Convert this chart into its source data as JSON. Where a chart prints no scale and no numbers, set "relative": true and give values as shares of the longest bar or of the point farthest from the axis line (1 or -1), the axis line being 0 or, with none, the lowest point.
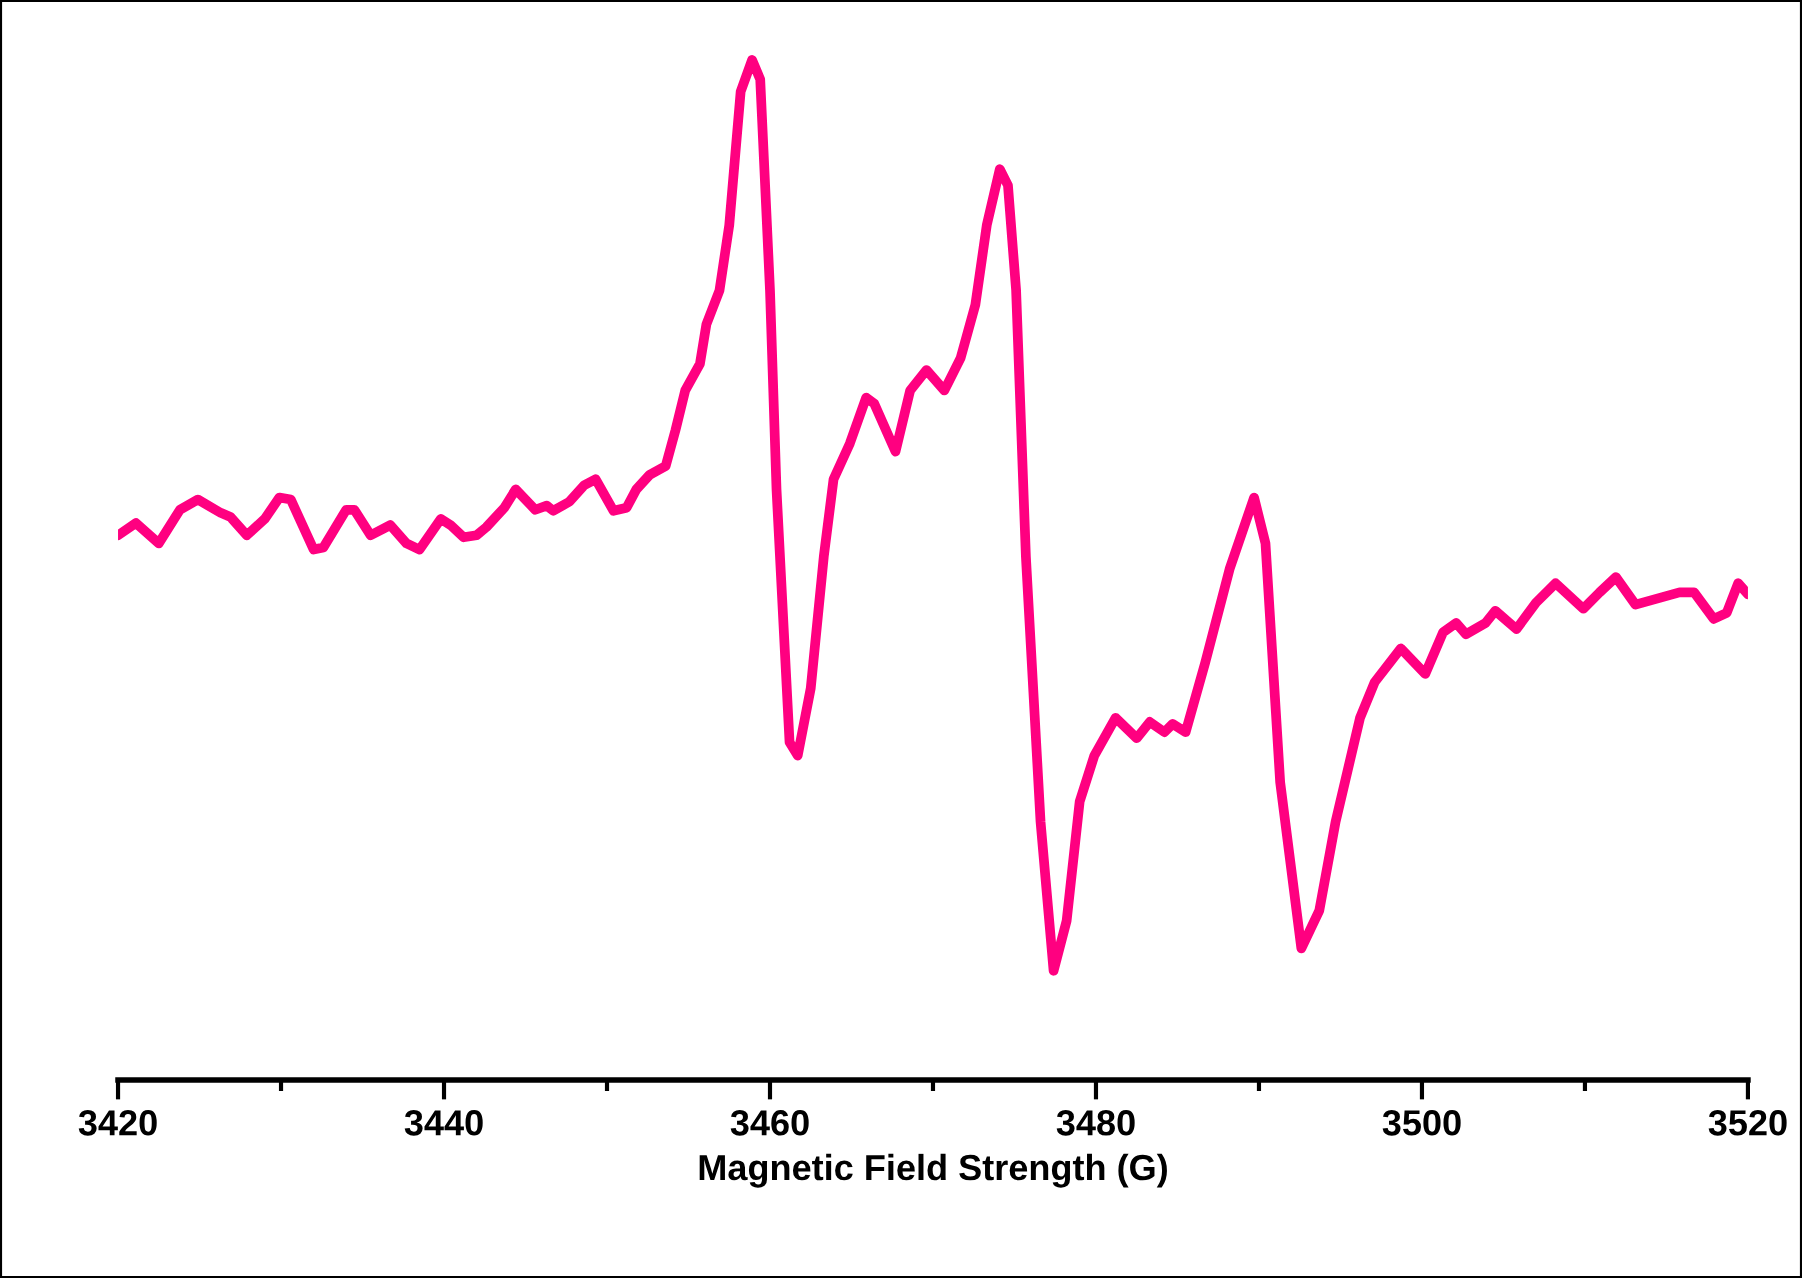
{
  "chart_data": {
    "type": "line",
    "relative": true,
    "xlabel": "Magnetic Field Strength (G)",
    "xlim": [
      3420,
      3520
    ],
    "xticks": [
      3420,
      {
        "value": 3430,
        "label": null
      },
      3440,
      {
        "value": 3450,
        "label": null
      },
      3460,
      {
        "value": 3470,
        "label": null
      },
      3480,
      {
        "value": 3490,
        "label": null
      },
      3500,
      {
        "value": 3510,
        "label": null
      },
      3520
    ],
    "grid": false,
    "legend": false,
    "marker": "none",
    "line_style": "solid",
    "series": [
      {
        "color": "#ff0080",
        "x": [
          3420.0,
          3421.1,
          3422.5,
          3423.8,
          3424.9,
          3426.3,
          3426.9,
          3427.9,
          3429.0,
          3429.9,
          3430.6,
          3432.0,
          3432.6,
          3434.0,
          3434.5,
          3435.5,
          3436.7,
          3437.7,
          3438.5,
          3439.8,
          3440.4,
          3441.2,
          3442.0,
          3442.6,
          3443.7,
          3444.4,
          3445.6,
          3446.3,
          3446.7,
          3447.7,
          3448.6,
          3449.3,
          3450.4,
          3451.2,
          3451.8,
          3452.6,
          3453.6,
          3454.2,
          3454.8,
          3455.7,
          3456.1,
          3456.9,
          3457.5,
          3458.2,
          3458.9,
          3459.4,
          3460.0,
          3460.4,
          3461.2,
          3461.7,
          3462.5,
          3463.3,
          3463.9,
          3464.9,
          3465.9,
          3466.4,
          3467.7,
          3468.6,
          3469.6,
          3470.7,
          3471.7,
          3472.6,
          3473.3,
          3474.1,
          3474.6,
          3475.1,
          3475.7,
          3476.6,
          3477.4,
          3478.2,
          3479.0,
          3479.9,
          3481.2,
          3482.5,
          3483.3,
          3484.2,
          3484.7,
          3485.5,
          3486.7,
          3488.2,
          3489.7,
          3490.4,
          3491.3,
          3492.6,
          3493.7,
          3494.7,
          3496.2,
          3497.1,
          3498.7,
          3500.2,
          3501.3,
          3502.1,
          3502.7,
          3503.9,
          3504.5,
          3505.8,
          3507.0,
          3508.2,
          3509.9,
          3510.9,
          3511.9,
          3513.1,
          3515.8,
          3516.7,
          3517.9,
          3518.7,
          3519.4,
          3520.0
        ],
        "values": [
          0.534,
          0.546,
          0.526,
          0.559,
          0.569,
          0.556,
          0.552,
          0.534,
          0.55,
          0.571,
          0.569,
          0.52,
          0.522,
          0.559,
          0.559,
          0.534,
          0.544,
          0.526,
          0.52,
          0.55,
          0.544,
          0.532,
          0.534,
          0.542,
          0.561,
          0.579,
          0.559,
          0.563,
          0.558,
          0.567,
          0.583,
          0.589,
          0.558,
          0.561,
          0.579,
          0.593,
          0.602,
          0.637,
          0.676,
          0.702,
          0.741,
          0.774,
          0.838,
          0.969,
          1.0,
          0.981,
          0.774,
          0.579,
          0.331,
          0.318,
          0.384,
          0.513,
          0.589,
          0.624,
          0.669,
          0.663,
          0.616,
          0.676,
          0.696,
          0.676,
          0.708,
          0.76,
          0.838,
          0.893,
          0.877,
          0.774,
          0.513,
          0.253,
          0.107,
          0.156,
          0.273,
          0.318,
          0.355,
          0.335,
          0.351,
          0.341,
          0.349,
          0.341,
          0.409,
          0.501,
          0.571,
          0.526,
          0.292,
          0.129,
          0.166,
          0.253,
          0.355,
          0.39,
          0.423,
          0.398,
          0.439,
          0.448,
          0.437,
          0.448,
          0.46,
          0.442,
          0.468,
          0.487,
          0.462,
          0.478,
          0.493,
          0.466,
          0.478,
          0.478,
          0.452,
          0.458,
          0.487,
          0.476
        ]
      }
    ]
  }
}
